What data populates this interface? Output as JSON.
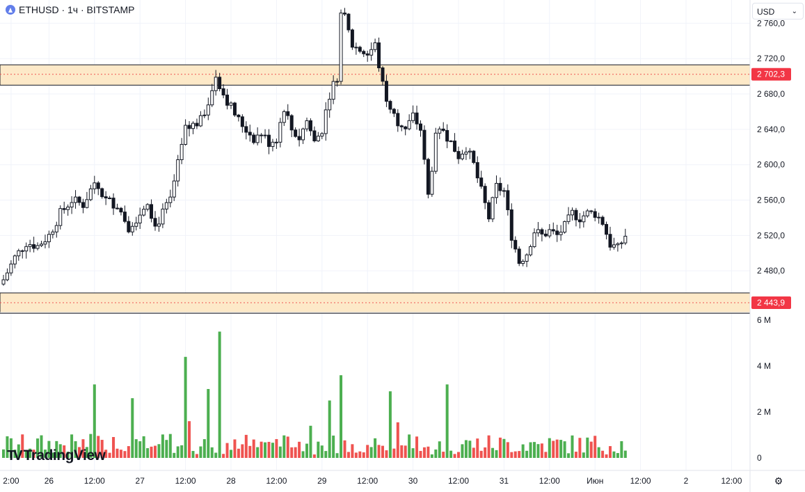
{
  "header": {
    "symbol_title": "ETHUSD · 1ч · BITSTAMP",
    "currency_label": "USD"
  },
  "branding": {
    "logo_text": "TradingView"
  },
  "icons": {
    "symbol": "ethereum-icon",
    "currency": "chevron-down-icon",
    "settings": "gear-icon",
    "logo": "tradingview-logo"
  },
  "colors": {
    "up": "#26a69a",
    "down": "#ef5350",
    "volume_up": "#4caf50",
    "volume_down": "#ef5350",
    "candle_border": "#131722",
    "zone_fill": "#fde9c8",
    "zone_line": "#ef5350",
    "label_bg": "#f23645"
  },
  "chart_data": [
    {
      "type": "candlestick",
      "title": "",
      "timeframe": "1h",
      "ylim": [
        2440,
        2780
      ],
      "y_ticks": [
        "2 760,0",
        "2 720,0",
        "2 680,0",
        "2 640,0",
        "2 600,0",
        "2 560,0",
        "2 520,0",
        "2 480,0"
      ],
      "y_tick_values": [
        2760,
        2720,
        2680,
        2640,
        2600,
        2560,
        2520,
        2480
      ],
      "x_ticks": [
        "2:00",
        "26",
        "12:00",
        "27",
        "12:00",
        "28",
        "12:00",
        "29",
        "12:00",
        "30",
        "12:00",
        "31",
        "12:00",
        "Июн",
        "12:00",
        "2",
        "12:00"
      ],
      "x_tick_hours": [
        2,
        12,
        24,
        36,
        48,
        60,
        72,
        84,
        96,
        108,
        120,
        132,
        144,
        156,
        168,
        180,
        192
      ],
      "last_candle_hour": 164,
      "key_points": [
        {
          "hour": 0,
          "close": 2470
        },
        {
          "hour": 3,
          "close": 2495
        },
        {
          "hour": 6,
          "close": 2512
        },
        {
          "hour": 9,
          "close": 2508
        },
        {
          "hour": 12,
          "close": 2520
        },
        {
          "hour": 15,
          "close": 2545
        },
        {
          "hour": 18,
          "close": 2560
        },
        {
          "hour": 21,
          "close": 2555
        },
        {
          "hour": 24,
          "close": 2580
        },
        {
          "hour": 27,
          "close": 2560
        },
        {
          "hour": 30,
          "close": 2555
        },
        {
          "hour": 33,
          "close": 2530
        },
        {
          "hour": 36,
          "close": 2545
        },
        {
          "hour": 38,
          "close": 2560
        },
        {
          "hour": 40,
          "close": 2530
        },
        {
          "hour": 42,
          "close": 2545
        },
        {
          "hour": 44,
          "close": 2560
        },
        {
          "hour": 46,
          "close": 2600
        },
        {
          "hour": 48,
          "close": 2640
        },
        {
          "hour": 50,
          "close": 2645
        },
        {
          "hour": 52,
          "close": 2650
        },
        {
          "hour": 54,
          "close": 2670
        },
        {
          "hour": 56,
          "close": 2700
        },
        {
          "hour": 58,
          "close": 2680
        },
        {
          "hour": 60,
          "close": 2665
        },
        {
          "hour": 62,
          "close": 2650
        },
        {
          "hour": 64,
          "close": 2640
        },
        {
          "hour": 66,
          "close": 2630
        },
        {
          "hour": 68,
          "close": 2635
        },
        {
          "hour": 70,
          "close": 2625
        },
        {
          "hour": 72,
          "close": 2630
        },
        {
          "hour": 74,
          "close": 2665
        },
        {
          "hour": 76,
          "close": 2640
        },
        {
          "hour": 78,
          "close": 2630
        },
        {
          "hour": 80,
          "close": 2650
        },
        {
          "hour": 82,
          "close": 2625
        },
        {
          "hour": 84,
          "close": 2640
        },
        {
          "hour": 86,
          "close": 2680
        },
        {
          "hour": 88,
          "close": 2700
        },
        {
          "hour": 89,
          "close": 2770
        },
        {
          "hour": 90,
          "close": 2765
        },
        {
          "hour": 92,
          "close": 2735
        },
        {
          "hour": 94,
          "close": 2730
        },
        {
          "hour": 96,
          "close": 2725
        },
        {
          "hour": 98,
          "close": 2735
        },
        {
          "hour": 100,
          "close": 2690
        },
        {
          "hour": 102,
          "close": 2660
        },
        {
          "hour": 104,
          "close": 2650
        },
        {
          "hour": 106,
          "close": 2640
        },
        {
          "hour": 108,
          "close": 2655
        },
        {
          "hour": 110,
          "close": 2640
        },
        {
          "hour": 112,
          "close": 2565
        },
        {
          "hour": 114,
          "close": 2630
        },
        {
          "hour": 116,
          "close": 2640
        },
        {
          "hour": 118,
          "close": 2625
        },
        {
          "hour": 120,
          "close": 2610
        },
        {
          "hour": 122,
          "close": 2620
        },
        {
          "hour": 124,
          "close": 2600
        },
        {
          "hour": 126,
          "close": 2570
        },
        {
          "hour": 128,
          "close": 2540
        },
        {
          "hour": 130,
          "close": 2575
        },
        {
          "hour": 132,
          "close": 2570
        },
        {
          "hour": 134,
          "close": 2520
        },
        {
          "hour": 136,
          "close": 2490
        },
        {
          "hour": 138,
          "close": 2500
        },
        {
          "hour": 140,
          "close": 2525
        },
        {
          "hour": 142,
          "close": 2520
        },
        {
          "hour": 144,
          "close": 2525
        },
        {
          "hour": 146,
          "close": 2520
        },
        {
          "hour": 148,
          "close": 2530
        },
        {
          "hour": 150,
          "close": 2545
        },
        {
          "hour": 152,
          "close": 2540
        },
        {
          "hour": 154,
          "close": 2545
        },
        {
          "hour": 156,
          "close": 2545
        },
        {
          "hour": 158,
          "close": 2535
        },
        {
          "hour": 160,
          "close": 2510
        },
        {
          "hour": 162,
          "close": 2505
        },
        {
          "hour": 164,
          "close": 2520
        }
      ],
      "zones": [
        {
          "level": 2702.3,
          "label": "2 702,3",
          "top": 2713,
          "bottom": 2690
        },
        {
          "level": 2443.9,
          "label": "2 443,9",
          "top": 2455,
          "bottom": 2432
        }
      ]
    },
    {
      "type": "bar",
      "title": "",
      "ylim": [
        0,
        6000000
      ],
      "y_ticks": [
        "6 M",
        "4 M",
        "2 M",
        "0"
      ],
      "y_tick_values": [
        6000000,
        4000000,
        2000000,
        0
      ],
      "spikes": [
        {
          "hour": 24,
          "value": 3200000,
          "dir": "up"
        },
        {
          "hour": 34,
          "value": 2600000,
          "dir": "up"
        },
        {
          "hour": 48,
          "value": 4400000,
          "dir": "up"
        },
        {
          "hour": 49,
          "value": 1600000,
          "dir": "down"
        },
        {
          "hour": 54,
          "value": 3000000,
          "dir": "up"
        },
        {
          "hour": 57,
          "value": 5500000,
          "dir": "up"
        },
        {
          "hour": 86,
          "value": 2500000,
          "dir": "up"
        },
        {
          "hour": 89,
          "value": 3600000,
          "dir": "up"
        },
        {
          "hour": 102,
          "value": 2900000,
          "dir": "up"
        },
        {
          "hour": 117,
          "value": 3200000,
          "dir": "up"
        },
        {
          "hour": 104,
          "value": 1550000,
          "dir": "down"
        },
        {
          "hour": 81,
          "value": 1400000,
          "dir": "up"
        }
      ]
    }
  ]
}
